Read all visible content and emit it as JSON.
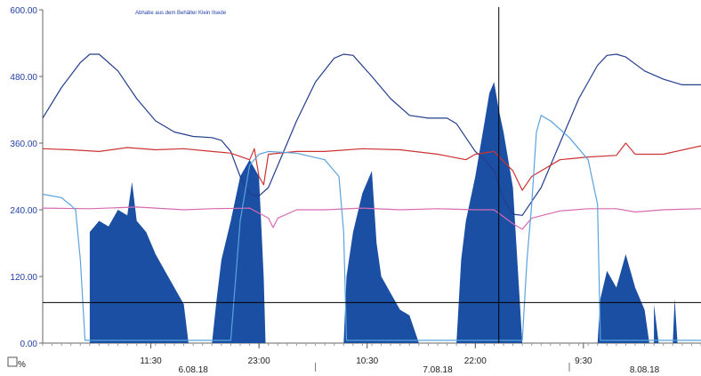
{
  "chart_data": {
    "type": "area",
    "title": "Abhabe aus dem Behälter Klein Ilsede",
    "ylim": [
      0,
      600
    ],
    "yticks": [
      "0.00",
      "120.00",
      "240.00",
      "360.00",
      "480.00",
      "600.00"
    ],
    "x_range_hours": [
      0,
      70
    ],
    "xtick_labels": [
      {
        "label": "11:30",
        "t": 11.5
      },
      {
        "label": "23:00",
        "t": 23.0
      },
      {
        "label": "10:30",
        "t": 34.5
      },
      {
        "label": "22:00",
        "t": 46.0
      },
      {
        "label": "9:30",
        "t": 57.5
      }
    ],
    "date_labels": [
      {
        "label": "6.08.18",
        "t": 16
      },
      {
        "label": "7.08.18",
        "t": 42
      },
      {
        "label": "8.08.18",
        "t": 64
      }
    ],
    "day_separators": [
      29,
      56
    ],
    "unit_label": "%",
    "reference_lines": {
      "horizontal_y": 73,
      "vertical_t": 48.5
    },
    "colors": {
      "area": "#1a4fa3",
      "dark_line": "#243e8c",
      "red_line": "#cc3333",
      "pink_line": "#d86ab0",
      "light_line": "#5aa3de",
      "axis": "#666666",
      "reference": "#000000"
    },
    "series": [
      {
        "kind": "area",
        "color_key": "area",
        "points": [
          [
            5,
            0
          ],
          [
            5,
            200
          ],
          [
            6,
            220
          ],
          [
            7,
            210
          ],
          [
            8,
            240
          ],
          [
            9,
            230
          ],
          [
            9.5,
            290
          ],
          [
            10,
            220
          ],
          [
            11,
            200
          ],
          [
            12,
            160
          ],
          [
            13,
            130
          ],
          [
            14,
            100
          ],
          [
            15,
            70
          ],
          [
            15.5,
            0
          ],
          [
            18,
            0
          ],
          [
            18.5,
            80
          ],
          [
            19,
            150
          ],
          [
            20,
            220
          ],
          [
            21,
            300
          ],
          [
            22,
            330
          ],
          [
            23,
            300
          ],
          [
            23.5,
            120
          ],
          [
            23.7,
            0
          ],
          [
            32,
            0
          ],
          [
            32.3,
            120
          ],
          [
            33,
            200
          ],
          [
            34,
            270
          ],
          [
            35,
            310
          ],
          [
            35.5,
            180
          ],
          [
            36,
            120
          ],
          [
            37,
            90
          ],
          [
            38,
            60
          ],
          [
            39,
            50
          ],
          [
            40,
            0
          ],
          [
            44,
            0
          ],
          [
            44.5,
            150
          ],
          [
            45,
            220
          ],
          [
            46,
            300
          ],
          [
            47,
            400
          ],
          [
            47.5,
            450
          ],
          [
            48,
            470
          ],
          [
            48.5,
            420
          ],
          [
            49,
            380
          ],
          [
            50,
            280
          ],
          [
            51,
            0
          ],
          [
            59,
            0
          ],
          [
            59.3,
            80
          ],
          [
            60,
            130
          ],
          [
            61,
            100
          ],
          [
            62,
            160
          ],
          [
            63,
            100
          ],
          [
            64,
            60
          ],
          [
            64.5,
            0
          ],
          [
            65,
            0
          ],
          [
            65,
            70
          ],
          [
            65.5,
            0
          ],
          [
            67,
            0
          ],
          [
            67.2,
            80
          ],
          [
            67.5,
            0
          ]
        ]
      },
      {
        "kind": "line",
        "color_key": "dark_line",
        "points": [
          [
            0,
            405
          ],
          [
            2,
            460
          ],
          [
            4,
            505
          ],
          [
            5,
            520
          ],
          [
            6,
            520
          ],
          [
            8,
            490
          ],
          [
            10,
            440
          ],
          [
            12,
            400
          ],
          [
            14,
            380
          ],
          [
            16,
            372
          ],
          [
            18,
            370
          ],
          [
            19,
            365
          ],
          [
            20,
            345
          ],
          [
            21,
            300
          ],
          [
            22,
            268
          ],
          [
            23,
            265
          ],
          [
            24,
            280
          ],
          [
            25,
            320
          ],
          [
            27,
            400
          ],
          [
            29,
            470
          ],
          [
            31,
            513
          ],
          [
            32,
            520
          ],
          [
            33,
            518
          ],
          [
            35,
            480
          ],
          [
            37,
            440
          ],
          [
            39,
            410
          ],
          [
            41,
            405
          ],
          [
            43,
            405
          ],
          [
            44,
            395
          ],
          [
            45,
            370
          ],
          [
            46,
            345
          ],
          [
            47,
            330
          ],
          [
            48,
            310
          ],
          [
            49,
            260
          ],
          [
            50,
            232
          ],
          [
            51,
            230
          ],
          [
            53,
            280
          ],
          [
            55,
            360
          ],
          [
            57,
            440
          ],
          [
            59,
            500
          ],
          [
            60,
            518
          ],
          [
            61,
            520
          ],
          [
            62,
            515
          ],
          [
            64,
            490
          ],
          [
            66,
            475
          ],
          [
            68,
            465
          ],
          [
            70,
            465
          ]
        ]
      },
      {
        "kind": "line",
        "color_key": "red_line",
        "points": [
          [
            0,
            350
          ],
          [
            3,
            348
          ],
          [
            6,
            345
          ],
          [
            9,
            352
          ],
          [
            12,
            348
          ],
          [
            15,
            350
          ],
          [
            18,
            345
          ],
          [
            20,
            342
          ],
          [
            22,
            330
          ],
          [
            22.5,
            350
          ],
          [
            23,
            300
          ],
          [
            23.5,
            285
          ],
          [
            24,
            340
          ],
          [
            27,
            345
          ],
          [
            30,
            345
          ],
          [
            34,
            350
          ],
          [
            38,
            348
          ],
          [
            42,
            340
          ],
          [
            45,
            330
          ],
          [
            46,
            340
          ],
          [
            48,
            345
          ],
          [
            50,
            310
          ],
          [
            51,
            275
          ],
          [
            52,
            300
          ],
          [
            55,
            330
          ],
          [
            58,
            335
          ],
          [
            61,
            338
          ],
          [
            62,
            360
          ],
          [
            63,
            340
          ],
          [
            66,
            340
          ],
          [
            70,
            355
          ]
        ]
      },
      {
        "kind": "line",
        "color_key": "pink_line",
        "points": [
          [
            0,
            243
          ],
          [
            5,
            242
          ],
          [
            10,
            245
          ],
          [
            15,
            240
          ],
          [
            18,
            242
          ],
          [
            22,
            243
          ],
          [
            24,
            225
          ],
          [
            24.5,
            208
          ],
          [
            25,
            225
          ],
          [
            27,
            240
          ],
          [
            30,
            240
          ],
          [
            34,
            243
          ],
          [
            38,
            240
          ],
          [
            42,
            242
          ],
          [
            46,
            240
          ],
          [
            48,
            240
          ],
          [
            50,
            215
          ],
          [
            51,
            205
          ],
          [
            52,
            225
          ],
          [
            55,
            238
          ],
          [
            58,
            242
          ],
          [
            61,
            242
          ],
          [
            63,
            236
          ],
          [
            66,
            240
          ],
          [
            70,
            242
          ]
        ]
      },
      {
        "kind": "line",
        "color_key": "light_line",
        "points": [
          [
            0,
            268
          ],
          [
            2,
            262
          ],
          [
            3,
            248
          ],
          [
            3.5,
            240
          ],
          [
            4,
            150
          ],
          [
            4.5,
            5
          ],
          [
            15.5,
            5
          ],
          [
            20,
            5
          ],
          [
            21,
            220
          ],
          [
            22,
            320
          ],
          [
            23,
            340
          ],
          [
            24,
            345
          ],
          [
            27,
            342
          ],
          [
            30,
            330
          ],
          [
            31.5,
            300
          ],
          [
            32,
            200
          ],
          [
            32.3,
            5
          ],
          [
            44,
            5
          ],
          [
            48,
            5
          ],
          [
            51,
            5
          ],
          [
            51.5,
            150
          ],
          [
            52,
            250
          ],
          [
            52.5,
            380
          ],
          [
            53,
            410
          ],
          [
            54,
            400
          ],
          [
            56,
            370
          ],
          [
            58,
            330
          ],
          [
            59,
            250
          ],
          [
            59.3,
            5
          ],
          [
            62,
            5
          ],
          [
            70,
            5
          ]
        ]
      }
    ]
  }
}
